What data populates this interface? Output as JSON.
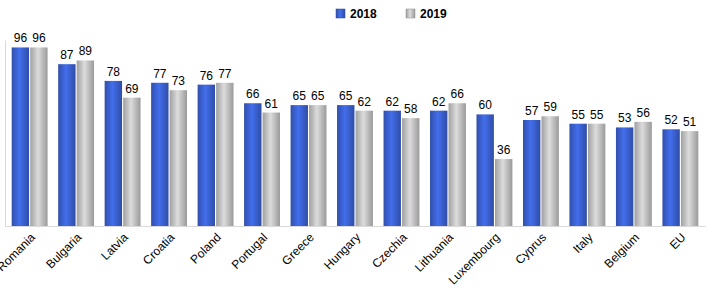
{
  "chart_data": {
    "type": "bar",
    "categories": [
      "Romania",
      "Bulgaria",
      "Latvia",
      "Croatia",
      "Poland",
      "Portugal",
      "Greece",
      "Hungary",
      "Czechia",
      "Lithuania",
      "Luxembourg",
      "Cyprus",
      "Italy",
      "Belgium",
      "EU"
    ],
    "series": [
      {
        "name": "2018",
        "color": "#3a5fcd",
        "values": [
          96,
          87,
          78,
          77,
          76,
          66,
          65,
          65,
          62,
          62,
          60,
          57,
          55,
          53,
          52
        ]
      },
      {
        "name": "2019",
        "color": "#bfbfbf",
        "values": [
          96,
          89,
          69,
          73,
          77,
          61,
          65,
          62,
          58,
          66,
          36,
          59,
          55,
          56,
          51
        ]
      }
    ],
    "ylim": [
      0,
      100
    ],
    "yticks": [],
    "grid": false,
    "legend": "top",
    "data_labels": true,
    "tick_labels": "x"
  }
}
